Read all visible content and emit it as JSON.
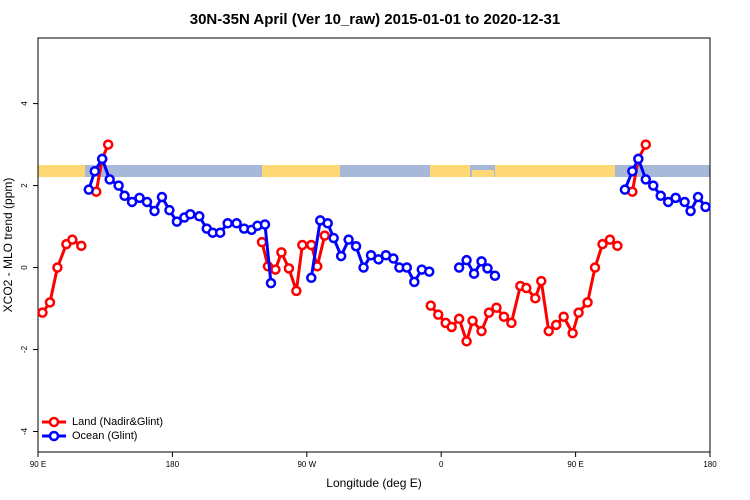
{
  "chart_data": {
    "type": "line",
    "title": "30N-35N April (Ver 10_raw)   2015-01-01 to 2020-12-31",
    "x_label": "Longitude (deg E)",
    "y_label": "XCO2 - MLO trend (ppm)",
    "xlim": [
      90,
      540
    ],
    "xticks": [
      {
        "value": 90,
        "label": "90 E"
      },
      180,
      {
        "value": 270,
        "label": "90 W"
      },
      {
        "value": 360,
        "label": "0"
      },
      {
        "value": 450,
        "label": "90 E"
      },
      {
        "value": 540,
        "label": "180"
      }
    ],
    "ylim": [
      -4.5,
      5.6
    ],
    "yticks": [
      -4,
      -2,
      0,
      2,
      4
    ],
    "legend": "bottomleft",
    "series": [
      {
        "name": "Land (Nadir&Glint)",
        "color": "#ff0000",
        "x": [
          93,
          98,
          103,
          109,
          113,
          119,
          null,
          129,
          133,
          137,
          null,
          240,
          244,
          249,
          253,
          258,
          263,
          267,
          273,
          277,
          282,
          null,
          353,
          358,
          363,
          367,
          372,
          377,
          381,
          387,
          392,
          397,
          402,
          407,
          413,
          417,
          423,
          427,
          432,
          437,
          442,
          448,
          452,
          458,
          463,
          468,
          473,
          478,
          null,
          488,
          492,
          497
        ],
        "values": [
          -1.1,
          -0.85,
          0.0,
          0.57,
          0.68,
          0.53,
          null,
          1.85,
          2.65,
          3.0,
          null,
          0.62,
          0.03,
          -0.05,
          0.37,
          -0.02,
          -0.57,
          0.55,
          0.55,
          0.03,
          0.78,
          null,
          -0.93,
          -1.15,
          -1.35,
          -1.45,
          -1.25,
          -1.8,
          -1.3,
          -1.55,
          -1.1,
          -0.98,
          -1.2,
          -1.35,
          -0.45,
          -0.5,
          -0.75,
          -0.33,
          -1.55,
          -1.4,
          -1.2,
          -1.6,
          -1.1,
          -0.85,
          0.0,
          0.57,
          0.68,
          0.53,
          null,
          1.85,
          2.65,
          3.0
        ]
      },
      {
        "name": "Ocean (Glint)",
        "color": "#0000ff",
        "x": [
          124,
          128,
          133,
          138,
          144,
          148,
          153,
          158,
          163,
          168,
          173,
          178,
          183,
          188,
          192,
          198,
          203,
          207,
          212,
          217,
          223,
          228,
          233,
          237,
          242,
          246,
          null,
          273,
          279,
          284,
          288,
          293,
          298,
          303,
          308,
          313,
          318,
          323,
          328,
          332,
          337,
          342,
          347,
          352,
          null,
          372,
          377,
          382,
          387,
          391,
          396,
          null,
          483,
          488,
          492,
          497,
          502,
          507,
          512,
          517,
          523,
          527,
          532,
          537
        ],
        "values": [
          1.9,
          2.35,
          2.65,
          2.15,
          2.0,
          1.75,
          1.6,
          1.7,
          1.6,
          1.38,
          1.72,
          1.4,
          1.12,
          1.22,
          1.3,
          1.25,
          0.95,
          0.85,
          0.85,
          1.08,
          1.08,
          0.95,
          0.92,
          1.02,
          1.05,
          -0.38,
          null,
          -0.25,
          1.15,
          1.08,
          0.72,
          0.28,
          0.68,
          0.52,
          0.0,
          0.3,
          0.2,
          0.3,
          0.22,
          0.0,
          0.0,
          -0.35,
          -0.05,
          -0.1,
          null,
          0.0,
          0.18,
          -0.15,
          0.15,
          -0.02,
          -0.2,
          null,
          1.9,
          2.35,
          2.65,
          2.15,
          2.0,
          1.75,
          1.6,
          1.7,
          1.6,
          1.38,
          1.72,
          1.48
        ]
      }
    ]
  }
}
